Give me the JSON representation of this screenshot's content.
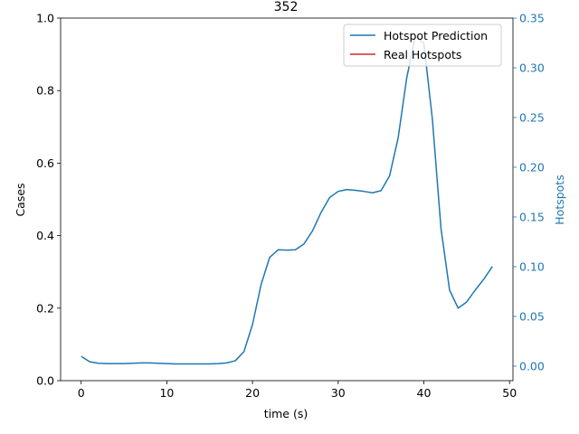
{
  "chart_data": {
    "type": "line",
    "title": "352",
    "xlabel": "time (s)",
    "ylabel": "Cases",
    "ylabel_right": "Hotspots",
    "xlim": [
      -2.4,
      50.4
    ],
    "ylim": [
      0,
      1
    ],
    "ylim_right": [
      -0.0146,
      0.35
    ],
    "x_ticks": [
      0,
      10,
      20,
      30,
      40,
      50
    ],
    "y_ticks": [
      0.0,
      0.2,
      0.4,
      0.6,
      0.8,
      1.0
    ],
    "y_tick_labels": [
      "0.0",
      "0.2",
      "0.4",
      "0.6",
      "0.8",
      "1.0"
    ],
    "y_right_ticks": [
      0.0,
      0.05,
      0.1,
      0.15,
      0.2,
      0.25,
      0.3,
      0.35
    ],
    "y_right_tick_labels": [
      "0.00",
      "0.05",
      "0.10",
      "0.15",
      "0.20",
      "0.25",
      "0.30",
      "0.35"
    ],
    "grid": false,
    "legend_position": "top-right",
    "colors": {
      "prediction": "#1f77b4",
      "real": "#d62728",
      "right_axis": "#1f77b4"
    },
    "series": [
      {
        "name": "Hotspot Prediction",
        "axis": "left",
        "x": [
          0,
          1,
          2,
          3,
          4,
          5,
          6,
          7,
          8,
          9,
          10,
          11,
          12,
          13,
          14,
          15,
          16,
          17,
          18,
          19,
          20,
          21,
          22,
          23,
          24,
          25,
          26,
          27,
          28,
          29,
          30,
          31,
          32,
          33,
          34,
          35,
          36,
          37,
          38,
          39,
          40,
          41,
          42,
          43,
          44,
          45,
          46,
          47,
          48
        ],
        "values": [
          0.067,
          0.052,
          0.048,
          0.047,
          0.047,
          0.047,
          0.048,
          0.049,
          0.049,
          0.048,
          0.047,
          0.046,
          0.046,
          0.046,
          0.046,
          0.046,
          0.047,
          0.049,
          0.055,
          0.08,
          0.155,
          0.265,
          0.34,
          0.361,
          0.36,
          0.361,
          0.377,
          0.413,
          0.464,
          0.505,
          0.522,
          0.527,
          0.525,
          0.522,
          0.518,
          0.524,
          0.565,
          0.67,
          0.835,
          0.95,
          0.93,
          0.72,
          0.42,
          0.25,
          0.2,
          0.217,
          0.25,
          0.28,
          0.315
        ]
      },
      {
        "name": "Real Hotspots",
        "axis": "right",
        "x": [],
        "values": []
      }
    ]
  }
}
